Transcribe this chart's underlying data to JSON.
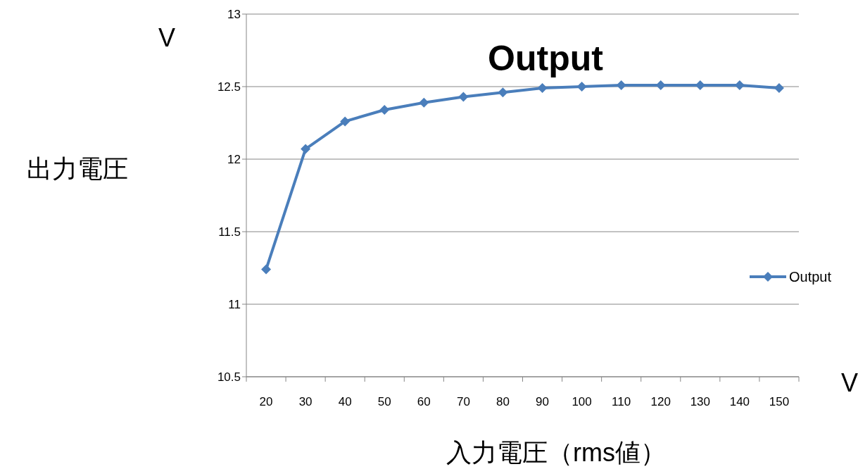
{
  "chart_data": {
    "type": "line",
    "title": "Output",
    "xlabel": "入力電圧（rms値）",
    "ylabel": "出力電圧",
    "annotations": [
      "V",
      "V"
    ],
    "categories": [
      "20",
      "30",
      "40",
      "50",
      "60",
      "70",
      "80",
      "90",
      "100",
      "110",
      "120",
      "130",
      "140",
      "150"
    ],
    "series": [
      {
        "name": "Output",
        "color": "#4a7ebb",
        "values": [
          11.24,
          12.07,
          12.26,
          12.34,
          12.39,
          12.43,
          12.46,
          12.49,
          12.5,
          12.51,
          12.51,
          12.51,
          12.51,
          12.49
        ]
      }
    ],
    "ylim": [
      10.5,
      13
    ],
    "yticks": [
      10.5,
      11,
      11.5,
      12,
      12.5,
      13
    ],
    "grid": "y",
    "legend": "right",
    "marker": "diamond",
    "line_style": "solid"
  }
}
